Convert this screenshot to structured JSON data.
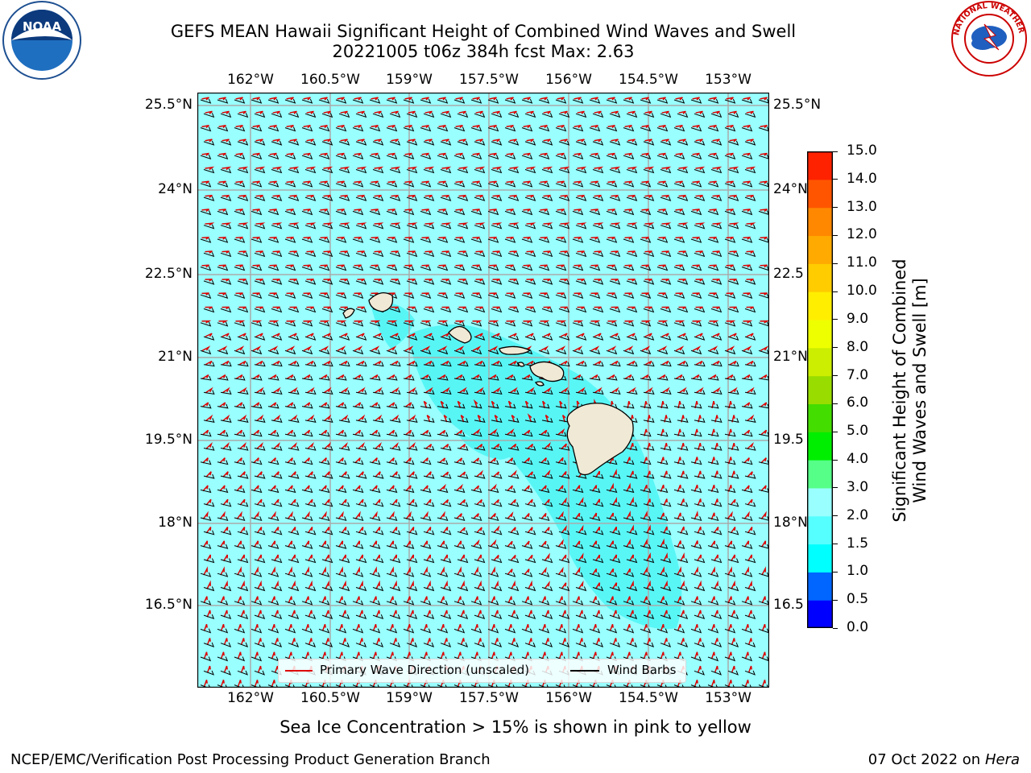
{
  "title": {
    "line1": "GEFS MEAN Hawaii Significant Height of Combined Wind Waves and Swell",
    "line2": "20221005 t06z 384h fcst   Max: 2.63"
  },
  "map": {
    "lon_labels": [
      "162°W",
      "160.5°W",
      "159°W",
      "157.5°W",
      "156°W",
      "154.5°W",
      "153°W"
    ],
    "lat_labels_left": [
      "25.5°N",
      "24°N",
      "22.5°N",
      "21°N",
      "19.5°N",
      "18°N",
      "16.5°N"
    ],
    "lat_labels_right": [
      "25.5°N",
      "24°N",
      "22.5",
      "21°N",
      "19.5",
      "18°N",
      "16.5"
    ],
    "ocean_color": "#99ffff",
    "elevated_color": "#55f5f5",
    "land_color": "#efe9d5",
    "wave_arrow_color": "#dd0000",
    "barb_color": "#000000"
  },
  "legend": {
    "wave_direction": "Primary Wave Direction (unscaled)",
    "wind_barbs": "Wind Barbs"
  },
  "colorbar": {
    "label_line1": "Significant Height of Combined",
    "label_line2": "Wind Waves and Swell [m]",
    "ticks": [
      "0.0",
      "0.5",
      "1.0",
      "1.5",
      "2.0",
      "3.0",
      "4.0",
      "5.0",
      "6.0",
      "7.0",
      "8.0",
      "9.0",
      "10.0",
      "11.0",
      "12.0",
      "13.0",
      "14.0",
      "15.0"
    ],
    "colors": [
      "#0000ff",
      "#0066ff",
      "#00ffff",
      "#55ffff",
      "#99ffff",
      "#55ff88",
      "#00ee00",
      "#44dd00",
      "#99dd00",
      "#ccee00",
      "#eeff00",
      "#ffee00",
      "#ffcc00",
      "#ffaa00",
      "#ff8800",
      "#ff5500",
      "#ff2200",
      "#ff0000"
    ]
  },
  "note": "Sea Ice Concentration > 15% is shown in pink to yellow",
  "footer": {
    "left": "NCEP/EMC/Verification Post Processing Product Generation Branch",
    "date": "07 Oct 2022 on",
    "host": "Hera"
  },
  "logos": {
    "noaa": "NOAA",
    "nws": "NATIONAL WEATHER SERVICE"
  }
}
